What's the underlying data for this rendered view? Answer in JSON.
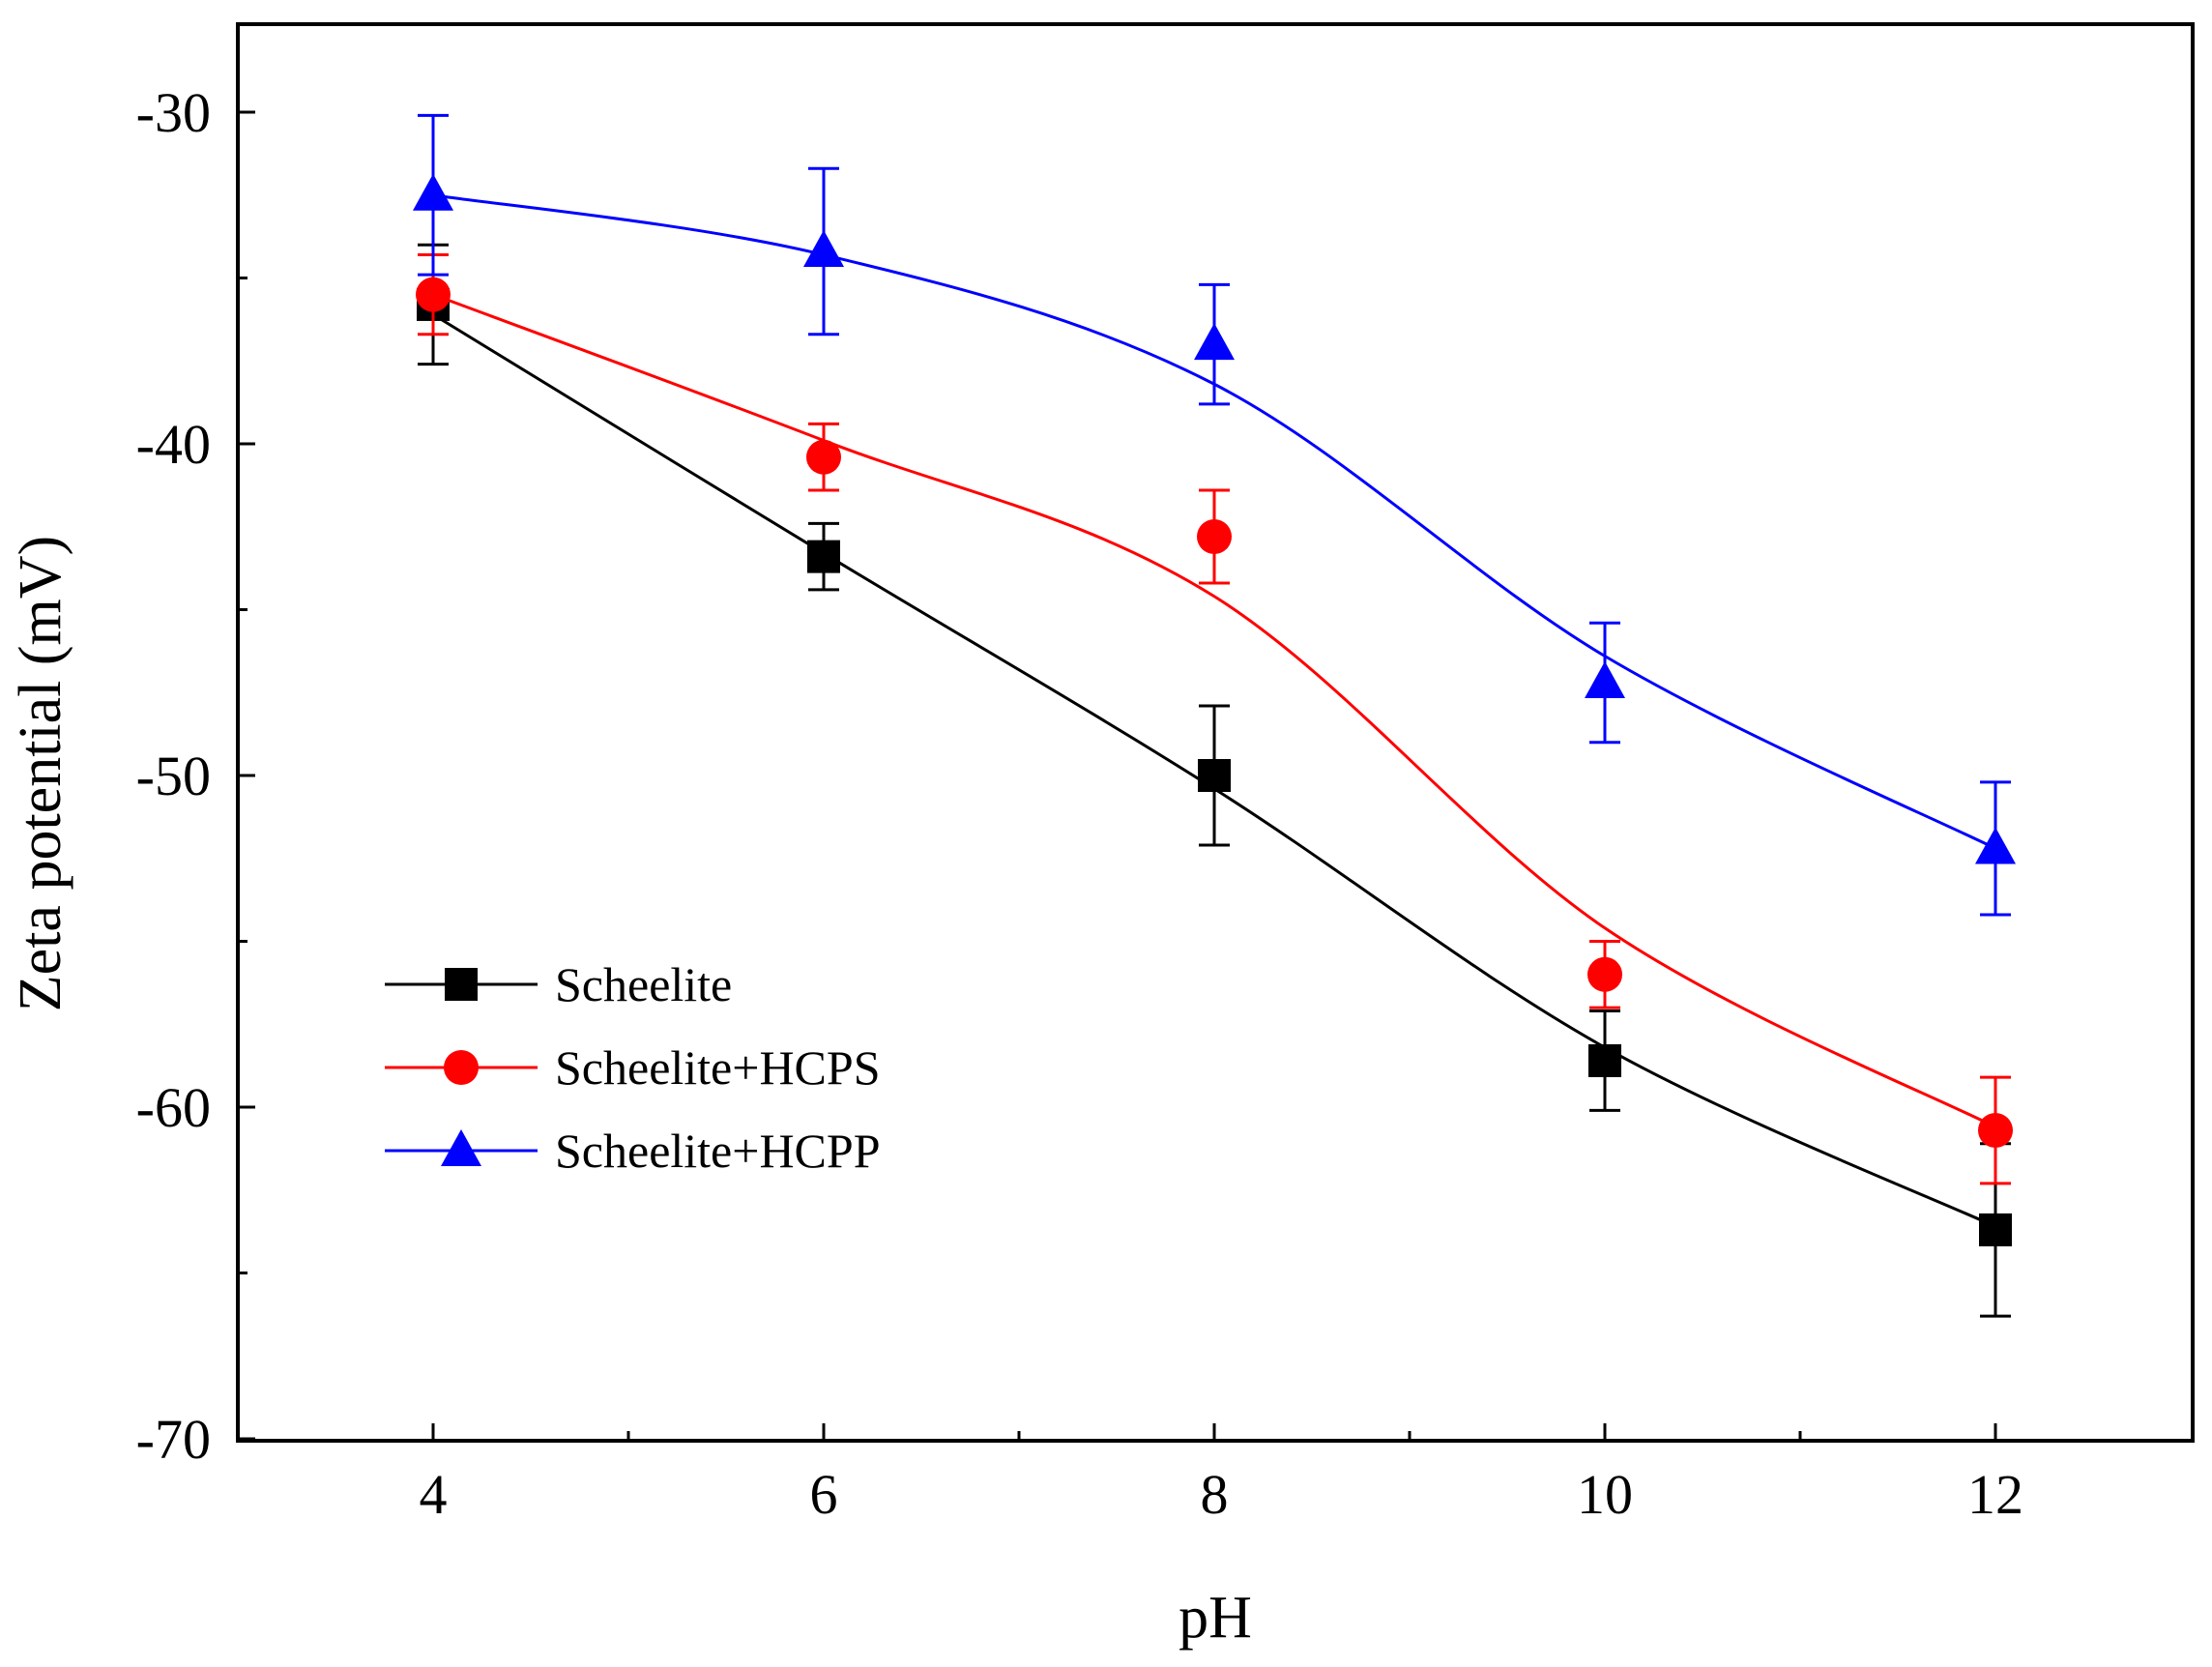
{
  "chart_data": {
    "type": "line",
    "title": "",
    "xlabel": "pH",
    "ylabel": "Zeta potential (mV)",
    "xlim": [
      3,
      13
    ],
    "ylim": [
      -70,
      -27
    ],
    "xticks": [
      4,
      6,
      8,
      10,
      12
    ],
    "xtick_labels": [
      "4",
      "6",
      "8",
      "10",
      "12"
    ],
    "xminor": [
      5,
      7,
      9,
      11
    ],
    "yticks": [
      -30,
      -40,
      -50,
      -60,
      -70
    ],
    "ytick_labels": [
      "-30",
      "-40",
      "-50",
      "-60",
      "-70"
    ],
    "yminor": [
      -35,
      -45,
      -55,
      -65
    ],
    "legend_position": "lower-left",
    "series": [
      {
        "name": "Scheelite",
        "color": "#000000",
        "marker": "square",
        "x": [
          4,
          6,
          8,
          10,
          12
        ],
        "y": [
          -35.8,
          -43.4,
          -50.0,
          -58.6,
          -63.7
        ],
        "err": [
          1.8,
          1.0,
          2.1,
          1.5,
          2.6
        ],
        "fit_y": [
          -36.1,
          -43.3,
          -50.4,
          -58.2,
          -63.6
        ]
      },
      {
        "name": "Scheelite+HCPS",
        "color": "#ff0000",
        "marker": "circle",
        "x": [
          4,
          6,
          8,
          10,
          12
        ],
        "y": [
          -35.5,
          -40.4,
          -42.8,
          -56.0,
          -60.7
        ],
        "err": [
          1.2,
          1.0,
          1.4,
          1.0,
          1.6
        ],
        "fit_y": [
          -35.5,
          -39.9,
          -44.6,
          -54.6,
          -60.6
        ]
      },
      {
        "name": "Scheelite+HCPP",
        "color": "#0000ff",
        "marker": "triangle",
        "x": [
          4,
          6,
          8,
          10,
          12
        ],
        "y": [
          -32.5,
          -34.2,
          -37.0,
          -47.2,
          -52.2
        ],
        "err": [
          2.4,
          2.5,
          1.8,
          1.8,
          2.0
        ],
        "fit_y": [
          -32.5,
          -34.3,
          -38.2,
          -46.4,
          -52.2
        ]
      }
    ]
  }
}
